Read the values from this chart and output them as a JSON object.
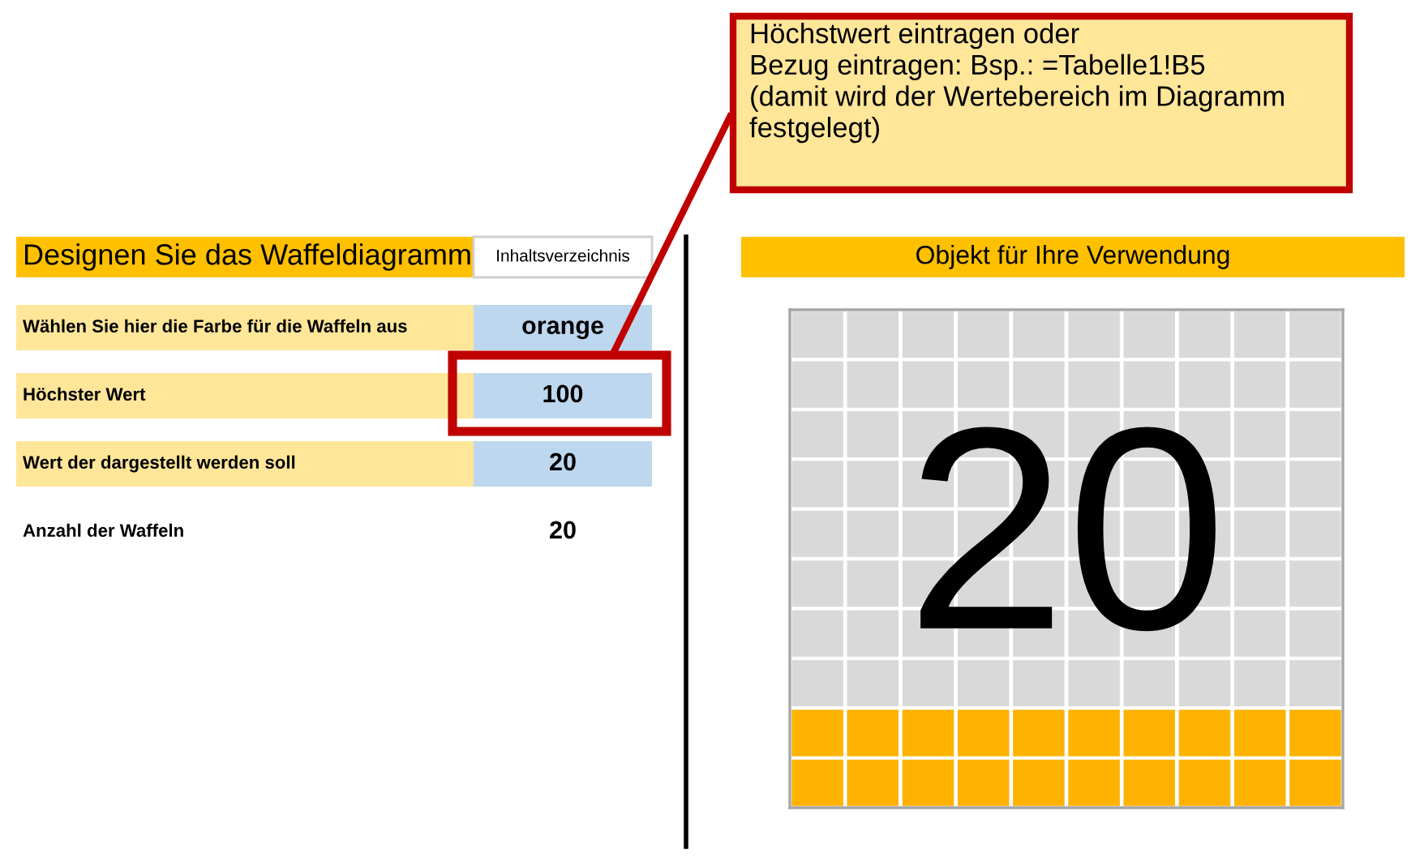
{
  "chart_data": {
    "type": "other",
    "title": "Objekt für Ihre Verwendung",
    "values": [
      20
    ],
    "colors": [
      "#ffb300"
    ],
    "data_labels": true,
    "annotations": [
      "Designen Sie das Waffeldiagramm",
      "Inhaltsverzeichnis",
      "Wählen Sie hier die Farbe für die Waffeln aus",
      "orange",
      "Höchster Wert",
      "100",
      "Wert der dargestellt werden soll",
      "20",
      "Anzahl der Waffeln",
      "20",
      "Höchstwert eintragen oder\nBezug eintragen: Bsp.: =Tabelle1!B5\n(damit wird der Wertebereich im Diagramm\nfestgelegt)"
    ]
  }
}
